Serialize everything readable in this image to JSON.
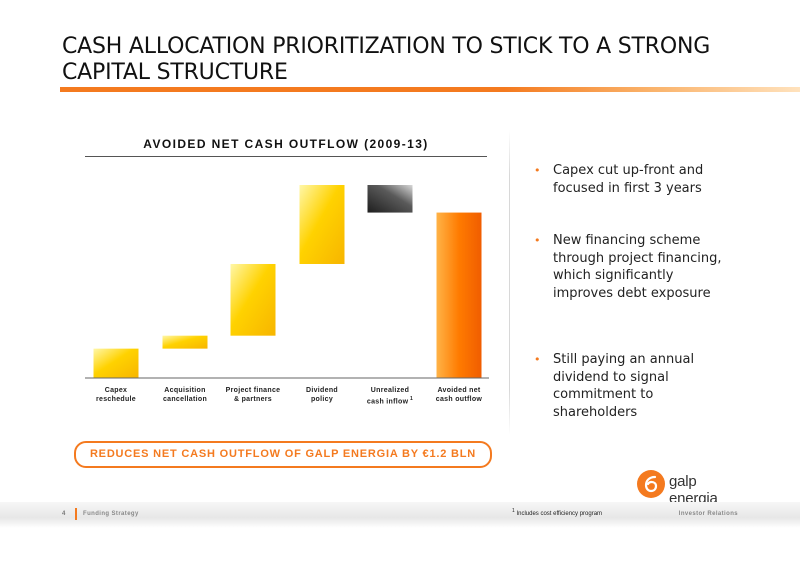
{
  "slide": {
    "title": "CASH ALLOCATION PRIORITIZATION TO STICK TO A STRONG CAPITAL STRUCTURE",
    "callout": "REDUCES NET CASH OUTFLOW OF GALP ENERGIA BY €1.2 BLN",
    "footnote_marker": "1",
    "footnote": "Includes cost efficiency program",
    "page_number": "4",
    "section": "Funding Strategy",
    "department": "Investor Relations"
  },
  "logo": {
    "text": "galp energia",
    "color": "#f47a1f"
  },
  "bullets": [
    "Capex cut up-front and focused in first 3 years",
    "New financing scheme through project financing, which significantly improves debt exposure",
    "Still paying an annual dividend to signal commitment to shareholders"
  ],
  "chart_data": {
    "type": "bar",
    "subtype": "waterfall",
    "title": "AVOIDED NET CASH OUTFLOW (2009-13)",
    "categories": [
      "Capex reschedule",
      "Acquisition cancellation",
      "Project finance & partners",
      "Dividend policy",
      "Unrealized cash inflow",
      "Avoided net cash outflow"
    ],
    "category_lines": [
      [
        "Capex",
        "reschedule"
      ],
      [
        "Acquisition",
        "cancellation"
      ],
      [
        "Project finance",
        "& partners"
      ],
      [
        "Dividend",
        "policy"
      ],
      [
        "Unrealized",
        "cash inflow"
      ],
      [
        "Avoided net",
        "cash outflow"
      ]
    ],
    "footnote_on_category": 4,
    "ylim": [
      0,
      1.5
    ],
    "steps": [
      {
        "start": 0.0,
        "end": 0.213,
        "kind": "increase"
      },
      {
        "start": 0.213,
        "end": 0.307,
        "kind": "increase"
      },
      {
        "start": 0.307,
        "end": 0.827,
        "kind": "increase"
      },
      {
        "start": 0.827,
        "end": 1.4,
        "kind": "increase"
      },
      {
        "start": 1.4,
        "end": 1.2,
        "kind": "decrease"
      },
      {
        "start": 0.0,
        "end": 1.2,
        "kind": "total"
      }
    ],
    "unit": "€ bln",
    "colors": {
      "increase": "#ffd200",
      "decrease": "#555555",
      "total": "#ff7b00"
    },
    "legend": "none",
    "grid": false
  }
}
